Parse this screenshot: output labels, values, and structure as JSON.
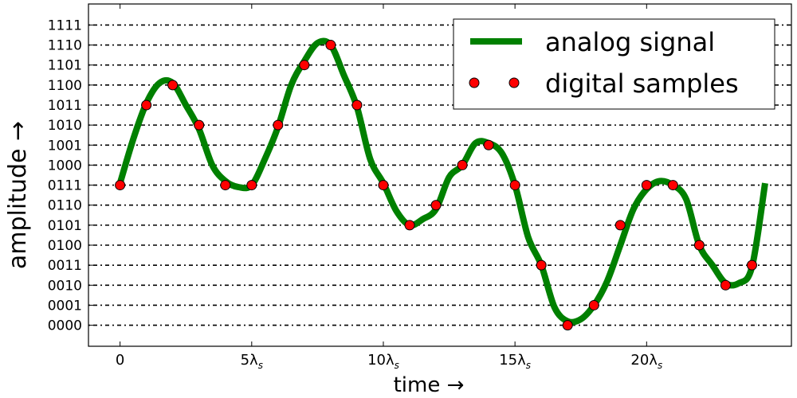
{
  "chart_data": {
    "type": "line",
    "xlabel": "time →",
    "ylabel": "amplitude →",
    "x_tick_values": [
      0,
      5,
      10,
      15,
      20
    ],
    "x_tick_labels": [
      {
        "base": "0",
        "sub": ""
      },
      {
        "base": "5λ",
        "sub": "s"
      },
      {
        "base": "10λ",
        "sub": "s"
      },
      {
        "base": "15λ",
        "sub": "s"
      },
      {
        "base": "20λ",
        "sub": "s"
      }
    ],
    "y_tick_values": [
      0,
      1,
      2,
      3,
      4,
      5,
      6,
      7,
      8,
      9,
      10,
      11,
      12,
      13,
      14,
      15
    ],
    "y_tick_labels": [
      "0000",
      "0001",
      "0010",
      "0011",
      "0100",
      "0101",
      "0110",
      "0111",
      "1000",
      "1001",
      "1010",
      "1011",
      "1100",
      "1101",
      "1110",
      "1111"
    ],
    "xlim": [
      -1.2,
      25.5
    ],
    "ylim": [
      -1.05,
      16.05
    ],
    "grid": "horizontal dotted at each y tick",
    "legend_position": "top-right",
    "series": [
      {
        "name": "analog signal",
        "style": "line",
        "color": "#008000",
        "x": [
          0,
          0.5,
          1,
          1.5,
          2,
          2.5,
          3,
          3.5,
          4,
          4.5,
          5,
          5.5,
          6,
          6.5,
          7,
          7.5,
          8,
          8.5,
          9,
          9.5,
          10,
          10.5,
          11,
          11.5,
          12,
          12.5,
          13,
          13.5,
          14,
          14.5,
          15,
          15.5,
          16,
          16.5,
          17,
          17.5,
          18,
          18.5,
          19,
          19.5,
          20,
          20.5,
          21,
          21.5,
          22,
          22.5,
          23,
          23.5,
          24,
          24.5
        ],
        "y": [
          7.1,
          9.3,
          11.1,
          12.1,
          12.1,
          11.0,
          9.8,
          8.0,
          7.2,
          6.9,
          7.0,
          8.3,
          9.9,
          12.0,
          13.2,
          14.1,
          14.0,
          12.5,
          10.9,
          8.3,
          7.1,
          5.7,
          5.0,
          5.3,
          5.8,
          7.4,
          8.0,
          9.1,
          9.1,
          8.6,
          7.0,
          4.4,
          3.0,
          0.9,
          0.2,
          0.3,
          1.0,
          2.2,
          4.0,
          5.8,
          6.8,
          7.2,
          7.0,
          6.3,
          4.0,
          3.0,
          2.1,
          2.1,
          2.9,
          7.1
        ]
      },
      {
        "name": "digital samples",
        "style": "markers",
        "color": "#ff0000",
        "x": [
          0,
          1,
          2,
          3,
          4,
          5,
          6,
          7,
          8,
          9,
          10,
          11,
          12,
          13,
          14,
          15,
          16,
          17,
          18,
          19,
          20,
          21,
          22,
          23,
          24
        ],
        "y": [
          7,
          11,
          12,
          10,
          7,
          7,
          10,
          13,
          14,
          11,
          7,
          5,
          6,
          8,
          9,
          7,
          3,
          0,
          1,
          5,
          7,
          7,
          4,
          2,
          3
        ]
      }
    ]
  }
}
